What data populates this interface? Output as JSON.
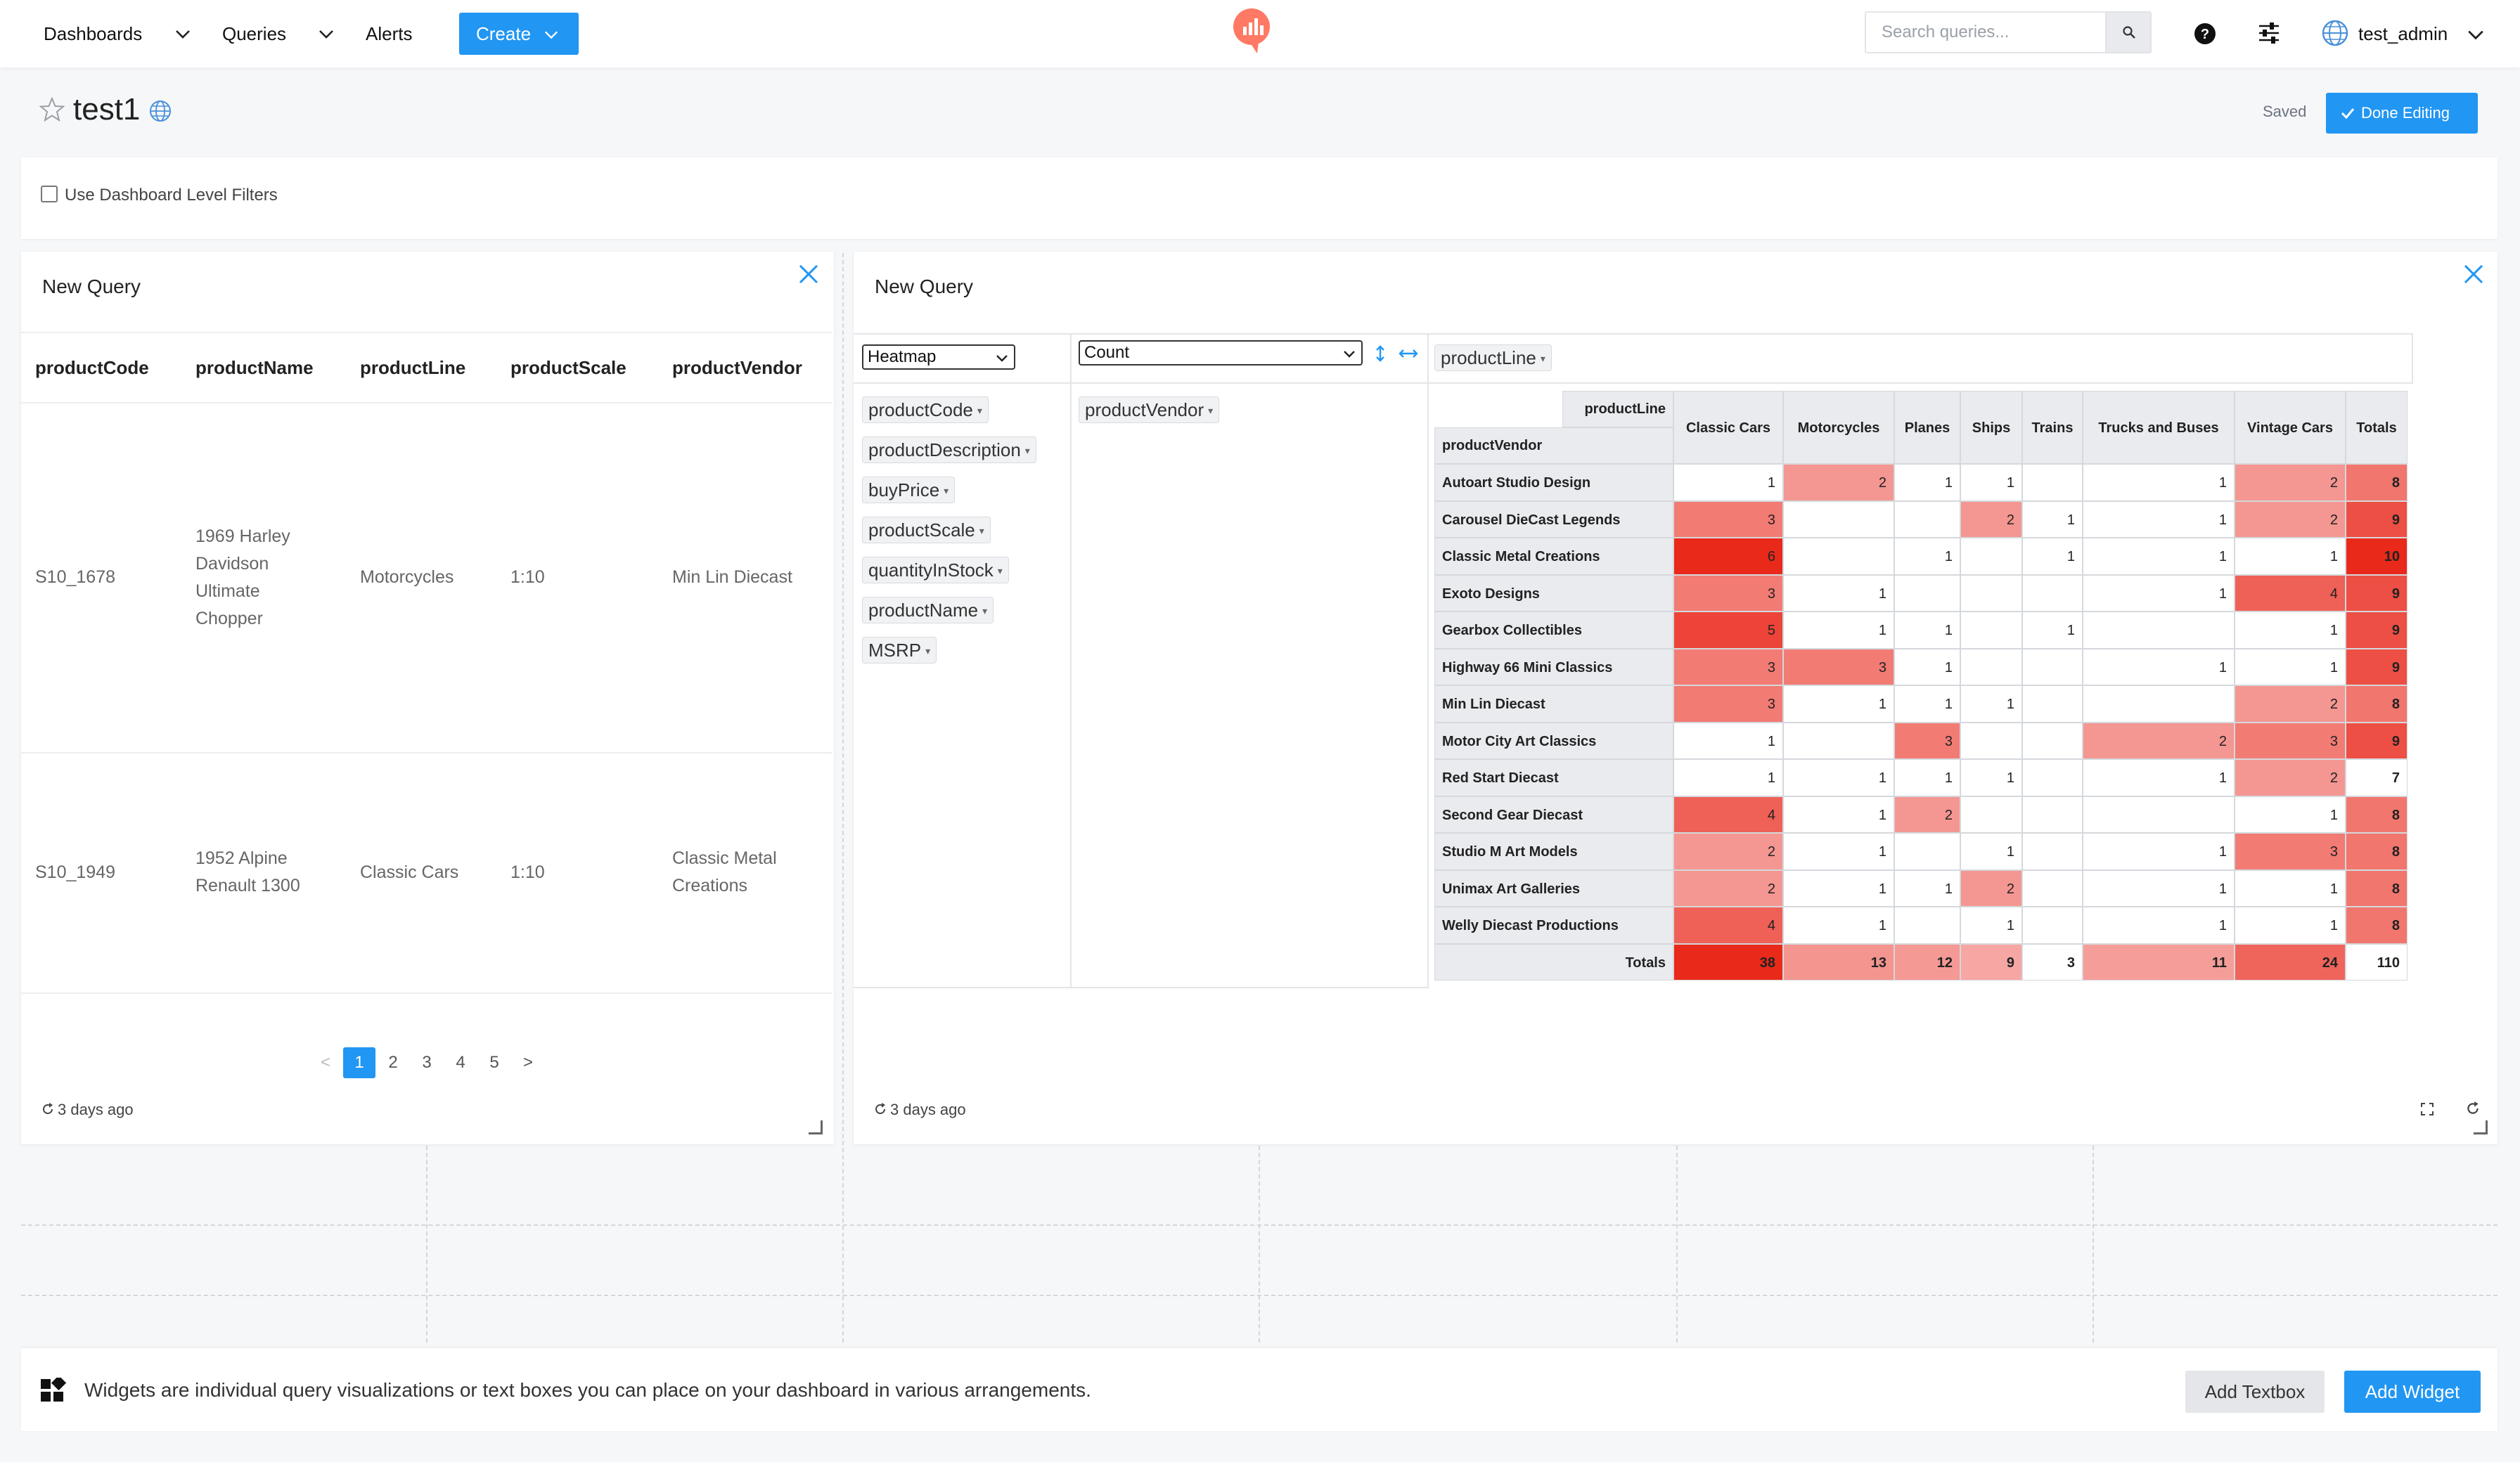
{
  "nav": {
    "dashboards": "Dashboards",
    "queries": "Queries",
    "alerts": "Alerts",
    "create": "Create",
    "search_placeholder": "Search queries...",
    "username": "test_admin"
  },
  "header": {
    "title": "test1",
    "saved": "Saved",
    "done_editing": "Done Editing"
  },
  "filters": {
    "label": "Use Dashboard Level Filters"
  },
  "widget_left": {
    "title": "New Query",
    "columns": [
      "productCode",
      "productName",
      "productLine",
      "productScale",
      "productVendor"
    ],
    "rows": [
      [
        "S10_1678",
        [
          "1969 Harley",
          "Davidson",
          "Ultimate",
          "Chopper"
        ],
        "Motorcycles",
        "1:10",
        [
          "Min Lin Diecast"
        ]
      ],
      [
        "S10_1949",
        [
          "1952 Alpine",
          "Renault 1300"
        ],
        "Classic Cars",
        "1:10",
        [
          "Classic Metal",
          "Creations"
        ]
      ]
    ],
    "pages": [
      "1",
      "2",
      "3",
      "4",
      "5"
    ],
    "active_page": "1",
    "prev": "<",
    "next": ">",
    "refreshed": "3 days ago"
  },
  "widget_right": {
    "title": "New Query",
    "renderer": "Heatmap",
    "aggregator": "Count",
    "col_attr": "productLine",
    "row_attr": "productVendor",
    "unused_attrs": [
      "productCode",
      "productDescription",
      "buyPrice",
      "productScale",
      "quantityInStock",
      "productName",
      "MSRP"
    ],
    "refreshed": "3 days ago"
  },
  "chart_data": {
    "type": "heatmap",
    "row_label": "productVendor",
    "col_label": "productLine",
    "totals_label": "Totals",
    "columns": [
      "Classic Cars",
      "Motorcycles",
      "Planes",
      "Ships",
      "Trains",
      "Trucks and Buses",
      "Vintage Cars"
    ],
    "rows": [
      {
        "name": "Autoart Studio Design",
        "values": [
          1,
          2,
          1,
          1,
          null,
          1,
          2
        ],
        "total": 8
      },
      {
        "name": "Carousel DieCast Legends",
        "values": [
          3,
          null,
          null,
          2,
          1,
          1,
          2
        ],
        "total": 9
      },
      {
        "name": "Classic Metal Creations",
        "values": [
          6,
          null,
          1,
          null,
          1,
          1,
          1
        ],
        "total": 10
      },
      {
        "name": "Exoto Designs",
        "values": [
          3,
          1,
          null,
          null,
          null,
          1,
          4
        ],
        "total": 9
      },
      {
        "name": "Gearbox Collectibles",
        "values": [
          5,
          1,
          1,
          null,
          1,
          null,
          1
        ],
        "total": 9
      },
      {
        "name": "Highway 66 Mini Classics",
        "values": [
          3,
          3,
          1,
          null,
          null,
          1,
          1
        ],
        "total": 9
      },
      {
        "name": "Min Lin Diecast",
        "values": [
          3,
          1,
          1,
          1,
          null,
          null,
          2
        ],
        "total": 8
      },
      {
        "name": "Motor City Art Classics",
        "values": [
          1,
          null,
          3,
          null,
          null,
          2,
          3
        ],
        "total": 9
      },
      {
        "name": "Red Start Diecast",
        "values": [
          1,
          1,
          1,
          1,
          null,
          1,
          2
        ],
        "total": 7
      },
      {
        "name": "Second Gear Diecast",
        "values": [
          4,
          1,
          2,
          null,
          null,
          null,
          1
        ],
        "total": 8
      },
      {
        "name": "Studio M Art Models",
        "values": [
          2,
          1,
          null,
          1,
          null,
          1,
          3
        ],
        "total": 8
      },
      {
        "name": "Unimax Art Galleries",
        "values": [
          2,
          1,
          1,
          2,
          null,
          1,
          1
        ],
        "total": 8
      },
      {
        "name": "Welly Diecast Productions",
        "values": [
          4,
          1,
          null,
          1,
          null,
          1,
          1
        ],
        "total": 8
      }
    ],
    "col_totals": [
      38,
      13,
      12,
      9,
      3,
      11,
      24
    ],
    "grand_total": 110,
    "colors": {
      "low": "#ffffff",
      "high": "#e9291a"
    }
  },
  "bottom": {
    "text": "Widgets are individual query visualizations or text boxes you can place on your dashboard in various arrangements.",
    "add_textbox": "Add Textbox",
    "add_widget": "Add Widget"
  }
}
